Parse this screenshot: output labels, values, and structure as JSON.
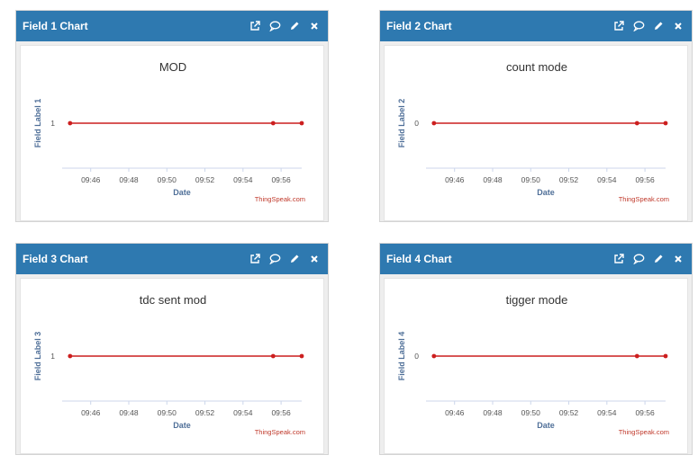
{
  "colors": {
    "header_bg": "#2e79b0",
    "series_line": "#cc1f1f",
    "axis_title": "#4f6f98",
    "credit": "#c0392b"
  },
  "widgets": [
    {
      "title": "Field 1 Chart",
      "icons": [
        "external-link-icon",
        "comment-icon",
        "pencil-icon",
        "close-icon"
      ],
      "chart_data": {
        "type": "line",
        "title": "MOD",
        "xlabel": "Date",
        "ylabel": "Field Label 1",
        "x_ticks": [
          "09:46",
          "09:48",
          "09:50",
          "09:52",
          "09:54",
          "09:56"
        ],
        "x": [
          "09:44:55",
          "09:55:35",
          "09:57:05"
        ],
        "y": [
          1,
          1,
          1
        ],
        "y_ticks": [
          "1"
        ],
        "credit": "ThingSpeak.com",
        "grid": false,
        "legend": "none"
      }
    },
    {
      "title": "Field 2 Chart",
      "icons": [
        "external-link-icon",
        "comment-icon",
        "pencil-icon",
        "close-icon"
      ],
      "chart_data": {
        "type": "line",
        "title": "count mode",
        "xlabel": "Date",
        "ylabel": "Field Label 2",
        "x_ticks": [
          "09:46",
          "09:48",
          "09:50",
          "09:52",
          "09:54",
          "09:56"
        ],
        "x": [
          "09:44:55",
          "09:55:35",
          "09:57:05"
        ],
        "y": [
          0,
          0,
          0
        ],
        "y_ticks": [
          "0"
        ],
        "credit": "ThingSpeak.com",
        "grid": false,
        "legend": "none"
      }
    },
    {
      "title": "Field 3 Chart",
      "icons": [
        "external-link-icon",
        "comment-icon",
        "pencil-icon",
        "close-icon"
      ],
      "chart_data": {
        "type": "line",
        "title": "tdc sent mod",
        "xlabel": "Date",
        "ylabel": "Field Label 3",
        "x_ticks": [
          "09:46",
          "09:48",
          "09:50",
          "09:52",
          "09:54",
          "09:56"
        ],
        "x": [
          "09:44:55",
          "09:55:35",
          "09:57:05"
        ],
        "y": [
          1,
          1,
          1
        ],
        "y_ticks": [
          "1"
        ],
        "credit": "ThingSpeak.com",
        "grid": false,
        "legend": "none"
      }
    },
    {
      "title": "Field 4 Chart",
      "icons": [
        "external-link-icon",
        "comment-icon",
        "pencil-icon",
        "close-icon"
      ],
      "chart_data": {
        "type": "line",
        "title": "tigger mode",
        "xlabel": "Date",
        "ylabel": "Field Label 4",
        "x_ticks": [
          "09:46",
          "09:48",
          "09:50",
          "09:52",
          "09:54",
          "09:56"
        ],
        "x": [
          "09:44:55",
          "09:55:35",
          "09:57:05"
        ],
        "y": [
          0,
          0,
          0
        ],
        "y_ticks": [
          "0"
        ],
        "credit": "ThingSpeak.com",
        "grid": false,
        "legend": "none"
      }
    }
  ]
}
